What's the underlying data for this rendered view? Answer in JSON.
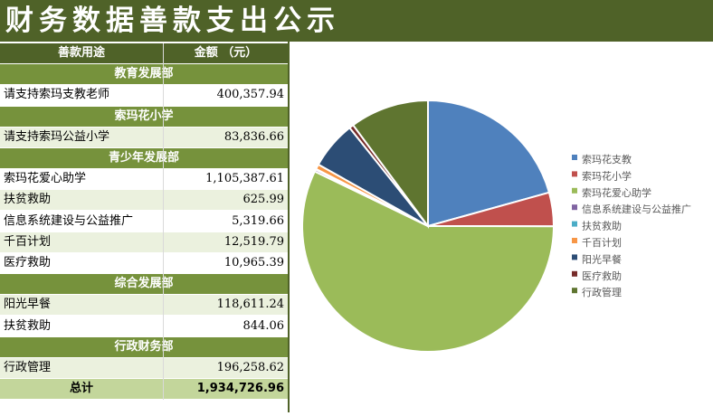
{
  "title": "财务数据善款支出公示",
  "table": {
    "header": {
      "purpose": "善款用途",
      "amount": "金额 （元）"
    },
    "sections": [
      {
        "name": "教育发展部",
        "rows": [
          {
            "label": "请支持索玛支教老师",
            "amount": "400,357.94"
          }
        ]
      },
      {
        "name": "索玛花小学",
        "rows": [
          {
            "label": "请支持索玛公益小学",
            "amount": "83,836.66"
          }
        ]
      },
      {
        "name": "青少年发展部",
        "rows": [
          {
            "label": "索玛花爱心助学",
            "amount": "1,105,387.61"
          },
          {
            "label": "扶贫救助",
            "amount": "625.99"
          },
          {
            "label": "信息系统建设与公益推广",
            "amount": "5,319.66"
          },
          {
            "label": "千百计划",
            "amount": "12,519.79"
          },
          {
            "label": "医疗救助",
            "amount": "10,965.39"
          }
        ]
      },
      {
        "name": "综合发展部",
        "rows": [
          {
            "label": "阳光早餐",
            "amount": "118,611.24"
          },
          {
            "label": "扶贫救助",
            "amount": "844.06"
          }
        ]
      },
      {
        "name": "行政财务部",
        "rows": [
          {
            "label": "行政管理",
            "amount": "196,258.62"
          }
        ]
      }
    ],
    "total": {
      "label": "总计",
      "amount": "1,934,726.96"
    }
  },
  "chart_data": {
    "type": "pie",
    "title": "",
    "legend_position": "right",
    "categories": [
      "索玛花支教",
      "索玛花小学",
      "索玛花爱心助学",
      "信息系统建设与公益推广",
      "扶贫救助",
      "千百计划",
      "阳光早餐",
      "医疗救助",
      "行政管理"
    ],
    "values": [
      400357.94,
      83836.66,
      1105387.61,
      5319.66,
      1470.05,
      12519.79,
      118611.24,
      10965.39,
      196258.62
    ],
    "colors": [
      "#4f81bd",
      "#c0504d",
      "#9bbb59",
      "#8064a2",
      "#4bacc6",
      "#f79646",
      "#2c4d75",
      "#772c2a",
      "#5f7530"
    ]
  }
}
